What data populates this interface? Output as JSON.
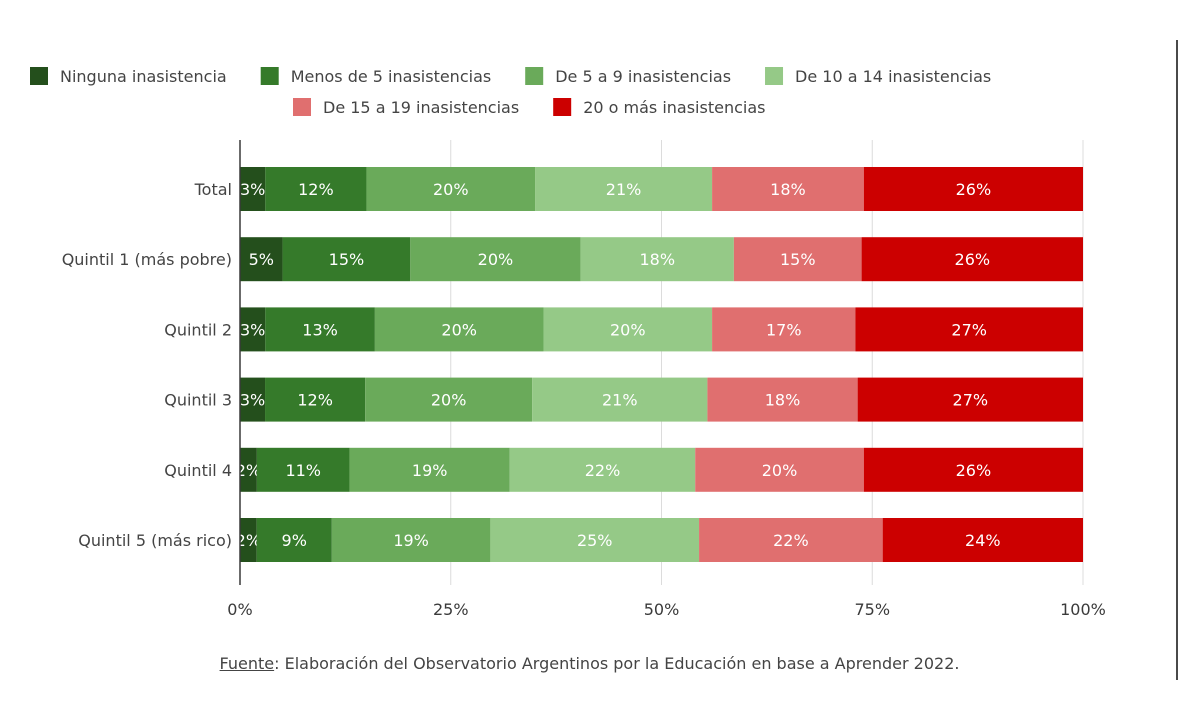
{
  "chart_data": {
    "type": "bar",
    "orientation": "horizontal",
    "stacked": "percent",
    "categories": [
      "Total",
      "Quintil 1 (más pobre)",
      "Quintil 2",
      "Quintil 3",
      "Quintil 4",
      "Quintil 5 (más rico)"
    ],
    "series": [
      {
        "name": "Ninguna inasistencia",
        "color": "#244f1c",
        "values": [
          3,
          5,
          3,
          3,
          2,
          2
        ]
      },
      {
        "name": "Menos de 5 inasistencias",
        "color": "#357a2a",
        "values": [
          12,
          15,
          13,
          12,
          11,
          9
        ]
      },
      {
        "name": "De 5 a 9 inasistencias",
        "color": "#6aaa5a",
        "values": [
          20,
          20,
          20,
          20,
          19,
          19
        ]
      },
      {
        "name": "De 10 a 14 inasistencias",
        "color": "#95c987",
        "values": [
          21,
          18,
          20,
          21,
          22,
          25
        ]
      },
      {
        "name": "De 15 a 19 inasistencias",
        "color": "#e06f6f",
        "values": [
          18,
          15,
          17,
          18,
          20,
          22
        ]
      },
      {
        "name": "20 o más inasistencias",
        "color": "#cc0000",
        "values": [
          26,
          26,
          27,
          27,
          26,
          24
        ]
      }
    ],
    "x_ticks": [
      "0%",
      "25%",
      "50%",
      "75%",
      "100%"
    ],
    "xlim": [
      0,
      100
    ],
    "grid": true,
    "legend_position": "top"
  },
  "source": {
    "label": "Fuente",
    "text": ": Elaboración del Observatorio Argentinos por la Educación en base a Aprender 2022."
  }
}
